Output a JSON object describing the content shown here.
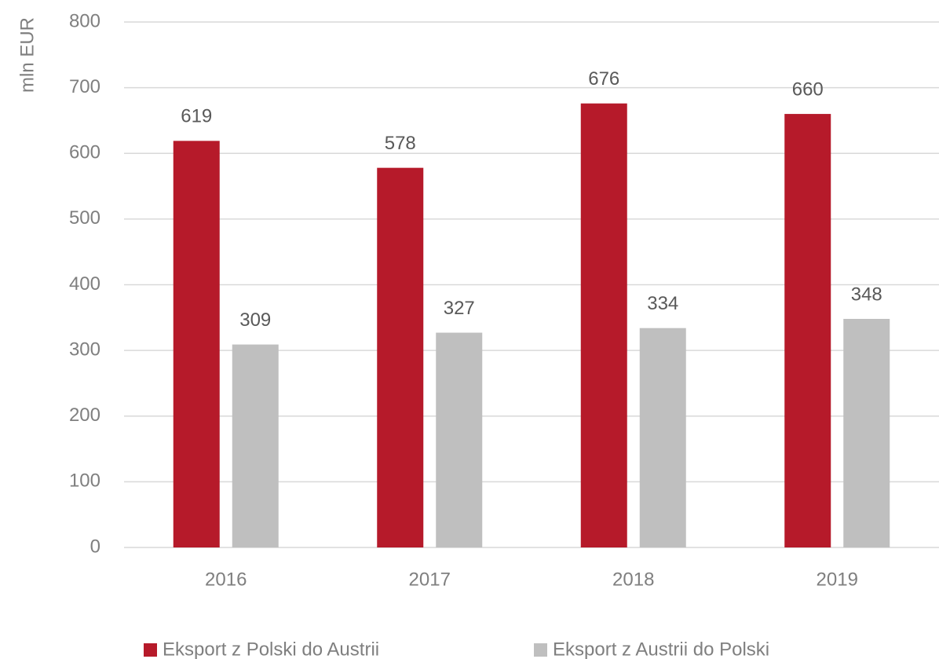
{
  "chart_data": {
    "type": "bar",
    "y_axis_label": "mln EUR",
    "categories": [
      "2016",
      "2017",
      "2018",
      "2019"
    ],
    "series": [
      {
        "name": "Eksport z Polski do Austrii",
        "color": "#b61a2a",
        "values": [
          619,
          578,
          676,
          660
        ]
      },
      {
        "name": "Eksport z Austrii do Polski",
        "color": "#bfbfbf",
        "values": [
          309,
          327,
          334,
          348
        ]
      }
    ],
    "ylim": [
      0,
      800
    ],
    "yticks": [
      0,
      100,
      200,
      300,
      400,
      500,
      600,
      700,
      800
    ],
    "grid": true,
    "legend": "bottom"
  }
}
